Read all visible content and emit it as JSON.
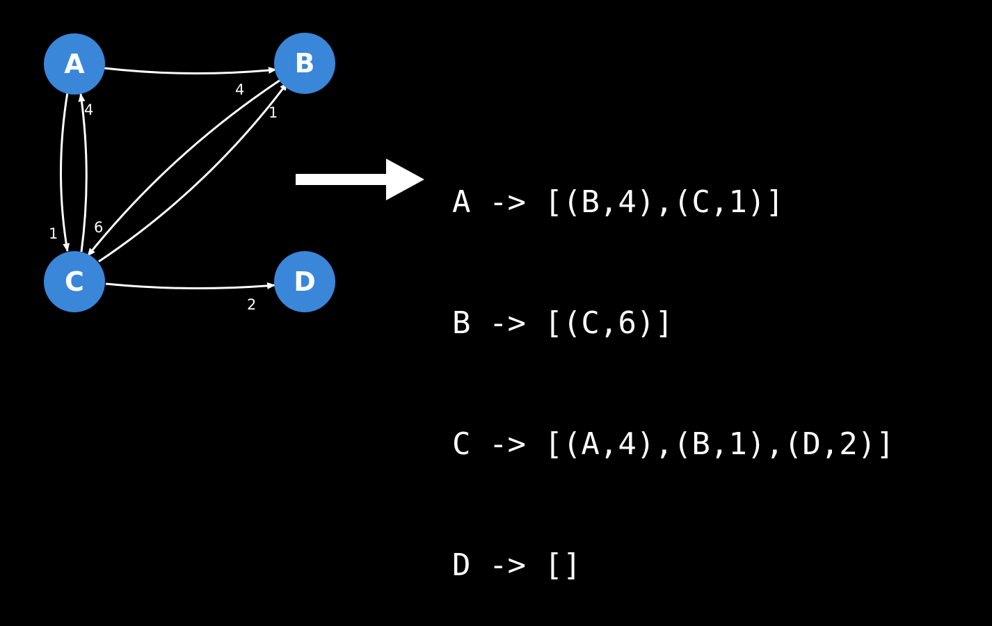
{
  "graph": {
    "node_color": "#3a86d9",
    "edge_color": "#ffffff",
    "nodes": [
      {
        "id": "A",
        "label": "A"
      },
      {
        "id": "B",
        "label": "B"
      },
      {
        "id": "C",
        "label": "C"
      },
      {
        "id": "D",
        "label": "D"
      }
    ],
    "edges": [
      {
        "from": "A",
        "to": "B",
        "weight": "4"
      },
      {
        "from": "A",
        "to": "C",
        "weight": "1"
      },
      {
        "from": "B",
        "to": "C",
        "weight": "6"
      },
      {
        "from": "C",
        "to": "A",
        "weight": "4"
      },
      {
        "from": "C",
        "to": "B",
        "weight": "1"
      },
      {
        "from": "C",
        "to": "D",
        "weight": "2"
      }
    ]
  },
  "adjacency_list": [
    "A -> [(B,4),(C,1)]",
    "B -> [(C,6)]",
    "C -> [(A,4),(B,1),(D,2)]",
    "D -> []"
  ]
}
